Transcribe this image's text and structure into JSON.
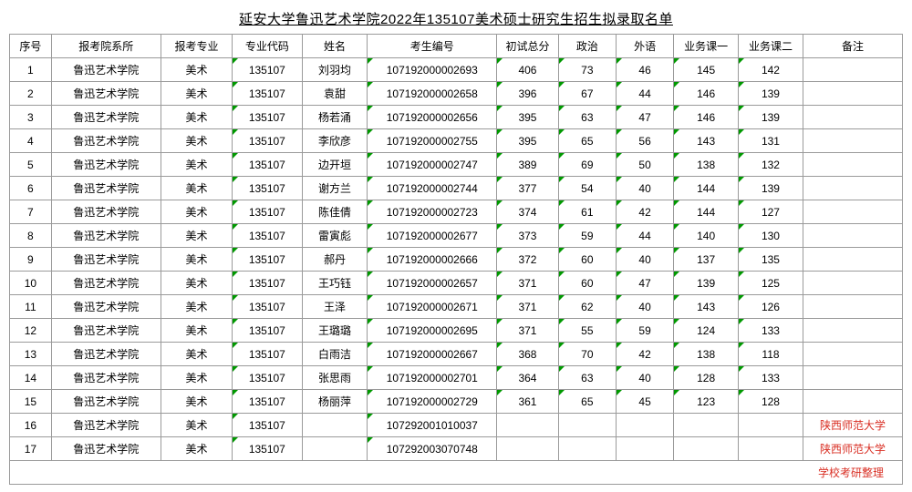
{
  "title": "延安大学鲁迅艺术学院2022年135107美术硕士研究生招生拟录取名单",
  "columns": [
    "序号",
    "报考院系所",
    "报考专业",
    "专业代码",
    "姓名",
    "考生编号",
    "初试总分",
    "政治",
    "外语",
    "业务课一",
    "业务课二",
    "备注"
  ],
  "rows": [
    {
      "seq": "1",
      "dept": "鲁迅艺术学院",
      "major": "美术",
      "code": "135107",
      "name": "刘羽均",
      "exam": "107192000002693",
      "total": "406",
      "pol": "73",
      "lang": "46",
      "b1": "145",
      "b2": "142",
      "remark": ""
    },
    {
      "seq": "2",
      "dept": "鲁迅艺术学院",
      "major": "美术",
      "code": "135107",
      "name": "袁甜",
      "exam": "107192000002658",
      "total": "396",
      "pol": "67",
      "lang": "44",
      "b1": "146",
      "b2": "139",
      "remark": ""
    },
    {
      "seq": "3",
      "dept": "鲁迅艺术学院",
      "major": "美术",
      "code": "135107",
      "name": "杨若涌",
      "exam": "107192000002656",
      "total": "395",
      "pol": "63",
      "lang": "47",
      "b1": "146",
      "b2": "139",
      "remark": ""
    },
    {
      "seq": "4",
      "dept": "鲁迅艺术学院",
      "major": "美术",
      "code": "135107",
      "name": "李欣彦",
      "exam": "107192000002755",
      "total": "395",
      "pol": "65",
      "lang": "56",
      "b1": "143",
      "b2": "131",
      "remark": ""
    },
    {
      "seq": "5",
      "dept": "鲁迅艺术学院",
      "major": "美术",
      "code": "135107",
      "name": "边开垣",
      "exam": "107192000002747",
      "total": "389",
      "pol": "69",
      "lang": "50",
      "b1": "138",
      "b2": "132",
      "remark": ""
    },
    {
      "seq": "6",
      "dept": "鲁迅艺术学院",
      "major": "美术",
      "code": "135107",
      "name": "谢方兰",
      "exam": "107192000002744",
      "total": "377",
      "pol": "54",
      "lang": "40",
      "b1": "144",
      "b2": "139",
      "remark": ""
    },
    {
      "seq": "7",
      "dept": "鲁迅艺术学院",
      "major": "美术",
      "code": "135107",
      "name": "陈佳倩",
      "exam": "107192000002723",
      "total": "374",
      "pol": "61",
      "lang": "42",
      "b1": "144",
      "b2": "127",
      "remark": ""
    },
    {
      "seq": "8",
      "dept": "鲁迅艺术学院",
      "major": "美术",
      "code": "135107",
      "name": "雷寅彪",
      "exam": "107192000002677",
      "total": "373",
      "pol": "59",
      "lang": "44",
      "b1": "140",
      "b2": "130",
      "remark": ""
    },
    {
      "seq": "9",
      "dept": "鲁迅艺术学院",
      "major": "美术",
      "code": "135107",
      "name": "郝丹",
      "exam": "107192000002666",
      "total": "372",
      "pol": "60",
      "lang": "40",
      "b1": "137",
      "b2": "135",
      "remark": ""
    },
    {
      "seq": "10",
      "dept": "鲁迅艺术学院",
      "major": "美术",
      "code": "135107",
      "name": "王巧钰",
      "exam": "107192000002657",
      "total": "371",
      "pol": "60",
      "lang": "47",
      "b1": "139",
      "b2": "125",
      "remark": ""
    },
    {
      "seq": "11",
      "dept": "鲁迅艺术学院",
      "major": "美术",
      "code": "135107",
      "name": "王泽",
      "exam": "107192000002671",
      "total": "371",
      "pol": "62",
      "lang": "40",
      "b1": "143",
      "b2": "126",
      "remark": ""
    },
    {
      "seq": "12",
      "dept": "鲁迅艺术学院",
      "major": "美术",
      "code": "135107",
      "name": "王璐璐",
      "exam": "107192000002695",
      "total": "371",
      "pol": "55",
      "lang": "59",
      "b1": "124",
      "b2": "133",
      "remark": ""
    },
    {
      "seq": "13",
      "dept": "鲁迅艺术学院",
      "major": "美术",
      "code": "135107",
      "name": "白雨洁",
      "exam": "107192000002667",
      "total": "368",
      "pol": "70",
      "lang": "42",
      "b1": "138",
      "b2": "118",
      "remark": ""
    },
    {
      "seq": "14",
      "dept": "鲁迅艺术学院",
      "major": "美术",
      "code": "135107",
      "name": "张思雨",
      "exam": "107192000002701",
      "total": "364",
      "pol": "63",
      "lang": "40",
      "b1": "128",
      "b2": "133",
      "remark": ""
    },
    {
      "seq": "15",
      "dept": "鲁迅艺术学院",
      "major": "美术",
      "code": "135107",
      "name": "杨丽萍",
      "exam": "107192000002729",
      "total": "361",
      "pol": "65",
      "lang": "45",
      "b1": "123",
      "b2": "128",
      "remark": ""
    },
    {
      "seq": "16",
      "dept": "鲁迅艺术学院",
      "major": "美术",
      "code": "135107",
      "name": "",
      "exam": "107292001010037",
      "total": "",
      "pol": "",
      "lang": "",
      "b1": "",
      "b2": "",
      "remark": "陕西师范大学"
    },
    {
      "seq": "17",
      "dept": "鲁迅艺术学院",
      "major": "美术",
      "code": "135107",
      "name": "",
      "exam": "107292003070748",
      "total": "",
      "pol": "",
      "lang": "",
      "b1": "",
      "b2": "",
      "remark": "陕西师范大学"
    }
  ],
  "footer": "学校考研整理",
  "style": {
    "title_fontsize": 15,
    "body_fontsize": 12,
    "border_color": "#9a9a9a",
    "triangle_color": "#009900",
    "remark_color": "#d93025",
    "background": "#ffffff"
  }
}
